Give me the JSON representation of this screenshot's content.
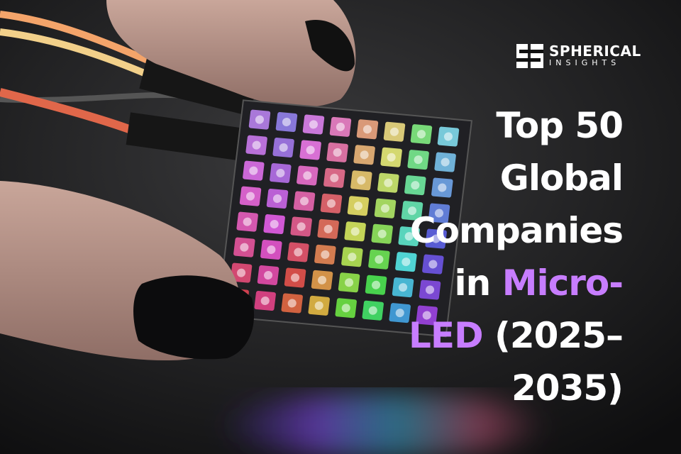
{
  "brand": {
    "name": "SPHERICAL",
    "tagline": "INSIGHTS"
  },
  "title": {
    "accent_color": "#c77dff",
    "lines": [
      [
        {
          "text": "Top 50"
        }
      ],
      [
        {
          "text": "Global"
        }
      ],
      [
        {
          "text": "Companies"
        }
      ],
      [
        {
          "text": "in "
        },
        {
          "text": "Micro-",
          "accent": true
        }
      ],
      [
        {
          "text": "LED",
          "accent": true
        },
        {
          "text": " (2025–"
        }
      ],
      [
        {
          "text": "2035)"
        }
      ]
    ]
  }
}
